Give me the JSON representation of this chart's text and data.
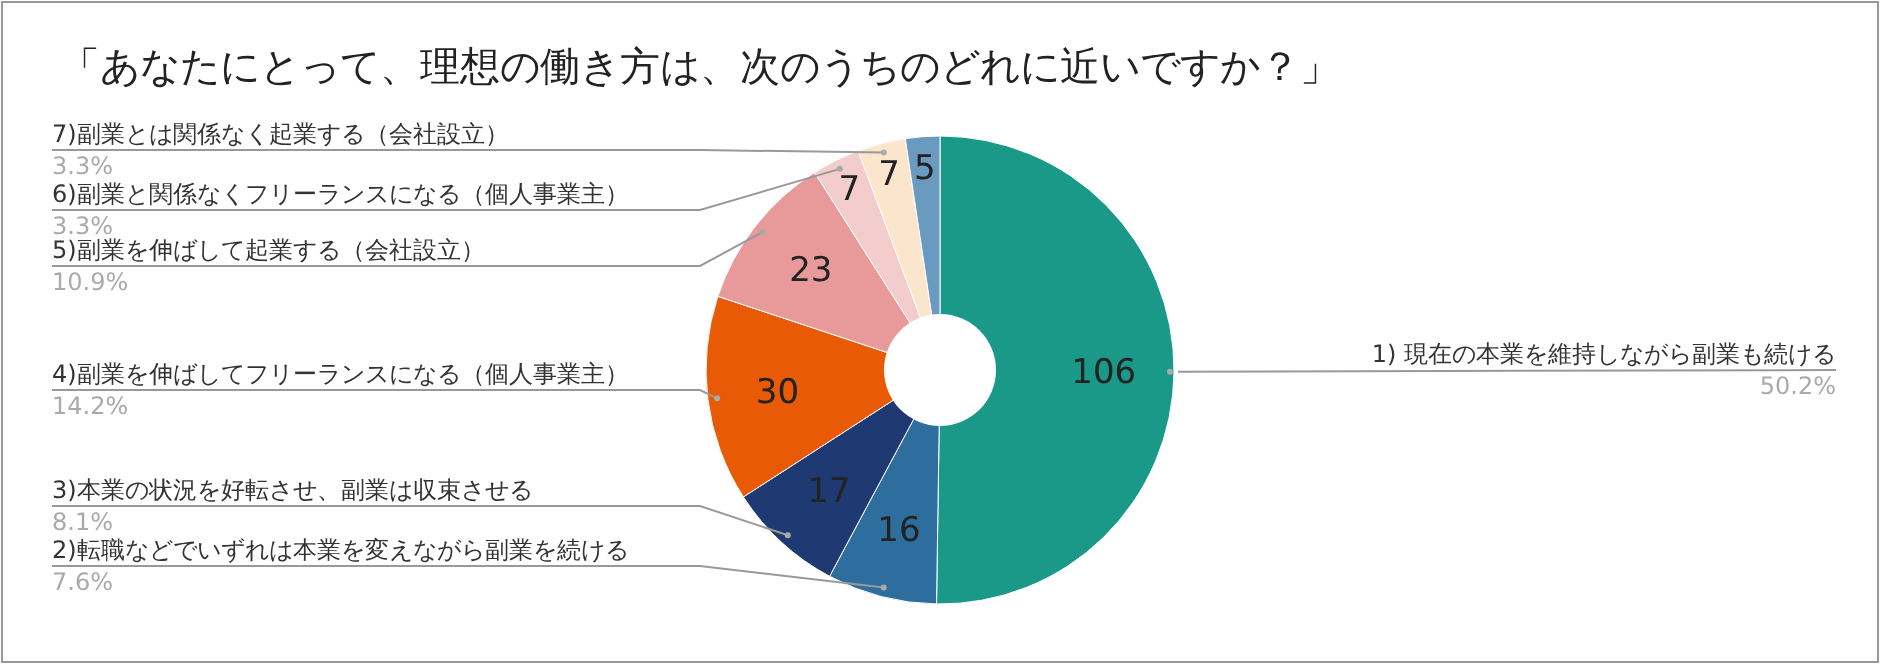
{
  "chart_data": {
    "type": "donut",
    "title": "「あなたにとって、理想の働き方は、次のうちのどれに近いですか？」",
    "categories": [
      "1) 現在の本業を維持しながら副業も続ける",
      "2)転職などでいずれは本業を変えながら副業を続ける",
      "3)本業の状況を好転させ、副業は収束させる",
      "4)副業を伸ばしてフリーランスになる（個人事業主）",
      "5)副業を伸ばして起業する（会社設立）",
      "6)副業と関係なくフリーランスになる（個人事業主）",
      "7)副業とは関係なく起業する（会社設立）",
      null
    ],
    "values": [
      106,
      16,
      17,
      30,
      23,
      7,
      7,
      5
    ],
    "colors": [
      "#1a9988",
      "#2e6e9e",
      "#1f3a73",
      "#e85a05",
      "#e89a9a",
      "#f3cccc",
      "#fce5cd",
      "#6a9ac0"
    ],
    "data_labels": true,
    "annotations": [
      "50.2%",
      "7.6%",
      "8.1%",
      "14.2%",
      "10.9%",
      "3.3%",
      "3.3%"
    ]
  }
}
